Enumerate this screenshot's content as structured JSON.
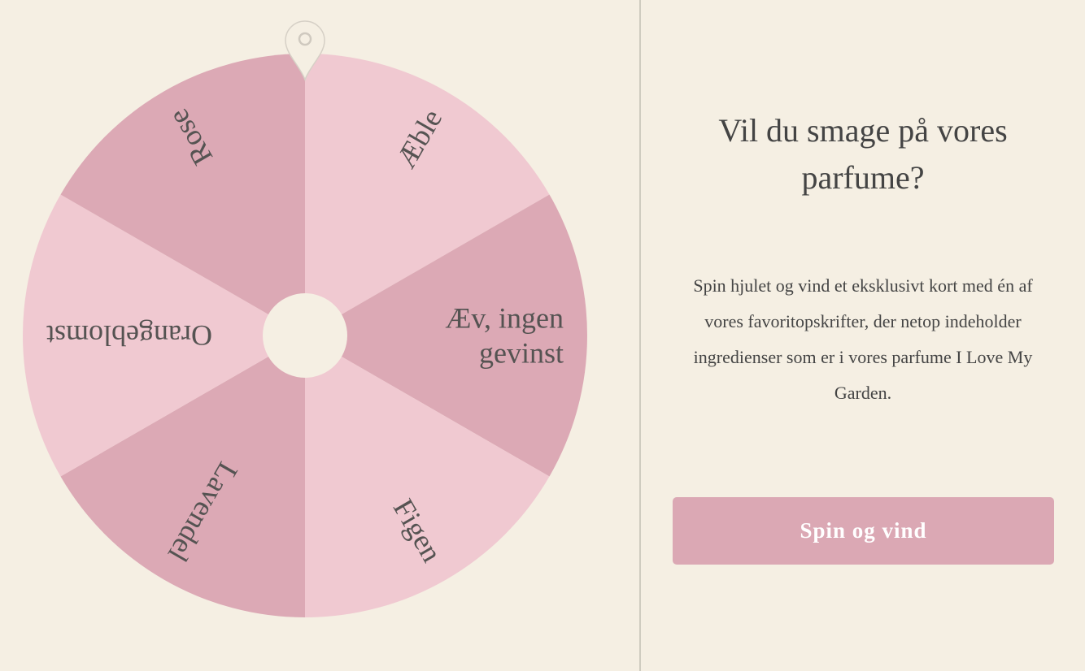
{
  "wheel": {
    "colors": {
      "light": "#f0c9d1",
      "dark": "#dca9b5",
      "hub": "#f5efe3",
      "pointer": "#f5efe3"
    },
    "segments": [
      {
        "lines": [
          "Æble"
        ],
        "shade": "light"
      },
      {
        "lines": [
          "Æv, ingen",
          "gevinst"
        ],
        "shade": "dark"
      },
      {
        "lines": [
          "Figen"
        ],
        "shade": "light"
      },
      {
        "lines": [
          "Lavendel"
        ],
        "shade": "dark"
      },
      {
        "lines": [
          "Orangeblomst"
        ],
        "shade": "light"
      },
      {
        "lines": [
          "Rose"
        ],
        "shade": "dark"
      }
    ],
    "pointer_icon": "map-pin-icon"
  },
  "panel": {
    "title": "Vil du smage på vores parfume?",
    "description": "Spin hjulet og vind et eksklusivt kort med én af vores favoritopskrifter, der netop indeholder ingredienser som er i vores parfume I Love My Garden.",
    "button_label": "Spin og vind",
    "accent": "#dba8b4"
  }
}
